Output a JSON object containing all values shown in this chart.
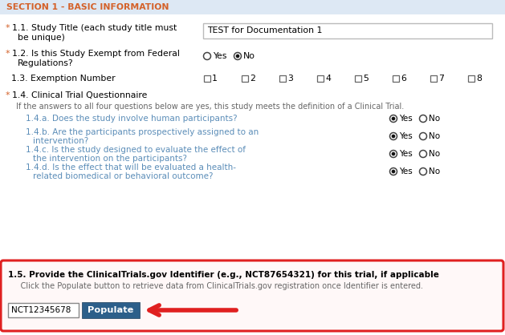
{
  "bg_color": "#eef2f7",
  "header_bg": "#dde8f4",
  "header_text": "SECTION 1 - BASIC INFORMATION",
  "header_color": "#d4622a",
  "white_bg": "#ffffff",
  "black": "#000000",
  "orange": "#d4622a",
  "blue_sub": "#5b8db8",
  "gray_text": "#666666",
  "red_border": "#e02020",
  "button_bg": "#2c5f8a",
  "button_fg": "#ffffff",
  "arrow_color": "#e02020",
  "input_border": "#aaaaaa",
  "nct_text": "NCT12345678",
  "populate_text": "Populate",
  "title_text": "TEST for Documentation 1",
  "sec15_line1": "1.5. Provide the ClinicalTrials.gov Identifier (e.g., NCT87654321) for this trial, if applicable",
  "sec15_line2": "     Click the Populate button to retrieve data from ClinicalTrials.gov registration once Identifier is entered.",
  "sub_questions": [
    "1.4.a. Does the study involve human participants?",
    "1.4.b. Are the participants prospectively assigned to an\n         intervention?",
    "1.4.c. Is the study designed to evaluate the effect of\n         the intervention on the participants?",
    "1.4.d. Is the effect that will be evaluated a health-\n         related biomedical or behavioral outcome?"
  ]
}
